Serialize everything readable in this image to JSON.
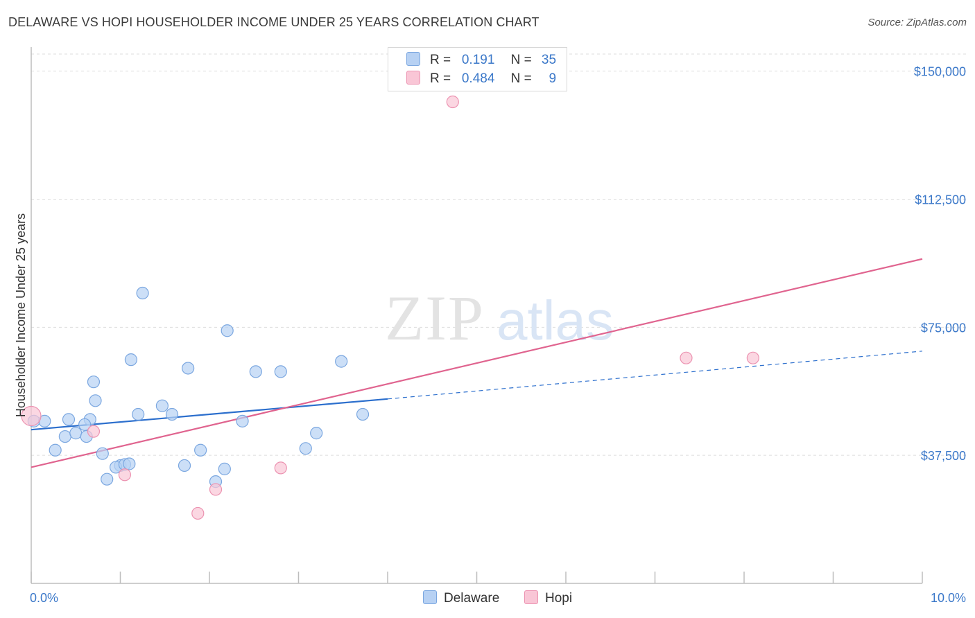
{
  "title": "DELAWARE VS HOPI HOUSEHOLDER INCOME UNDER 25 YEARS CORRELATION CHART",
  "source": "Source: ZipAtlas.com",
  "watermark": {
    "zip": "ZIP",
    "atlas": "atlas"
  },
  "legend": {
    "rows": [
      {
        "r_label": "R =",
        "r_value": "0.191",
        "n_label": "N =",
        "n_value": "35",
        "color": "#b7d1f3",
        "border": "#7ba7e0"
      },
      {
        "r_label": "R =",
        "r_value": "0.484",
        "n_label": "N =",
        "n_value": "9",
        "color": "#f9c6d6",
        "border": "#ec93b1"
      }
    ]
  },
  "bottom_legend": [
    {
      "label": "Delaware",
      "color": "#b7d1f3",
      "border": "#7ba7e0"
    },
    {
      "label": "Hopi",
      "color": "#f9c6d6",
      "border": "#ec93b1"
    }
  ],
  "chart_data": {
    "type": "scatter",
    "title": "DELAWARE VS HOPI HOUSEHOLDER INCOME UNDER 25 YEARS CORRELATION CHART",
    "xlabel": "",
    "ylabel": "Householder Income Under 25 years",
    "xlim": [
      0,
      10
    ],
    "ylim": [
      0,
      155000
    ],
    "x_tick_labels": [
      "0.0%",
      "10.0%"
    ],
    "y_ticks": [
      37500,
      75000,
      112500,
      150000
    ],
    "y_tick_labels": [
      "$37,500",
      "$75,000",
      "$112,500",
      "$150,000"
    ],
    "grid": true,
    "series": [
      {
        "name": "Delaware",
        "color": "#b7d1f3",
        "stroke": "#7ba7e0",
        "line_color": "#2c6fcd",
        "points": [
          [
            0.03,
            47500
          ],
          [
            0.15,
            47500
          ],
          [
            0.42,
            48000
          ],
          [
            0.66,
            48000
          ],
          [
            0.27,
            39000
          ],
          [
            0.38,
            43000
          ],
          [
            0.5,
            44000
          ],
          [
            0.6,
            46500
          ],
          [
            0.72,
            53500
          ],
          [
            0.62,
            43000
          ],
          [
            0.7,
            59000
          ],
          [
            0.8,
            38000
          ],
          [
            0.85,
            30500
          ],
          [
            1.0,
            34500
          ],
          [
            0.95,
            34000
          ],
          [
            1.05,
            34800
          ],
          [
            1.1,
            35000
          ],
          [
            1.12,
            65500
          ],
          [
            1.2,
            49500
          ],
          [
            1.25,
            85000
          ],
          [
            1.47,
            52000
          ],
          [
            1.58,
            49500
          ],
          [
            1.72,
            34500
          ],
          [
            1.76,
            63000
          ],
          [
            1.9,
            39000
          ],
          [
            2.07,
            29800
          ],
          [
            2.17,
            33500
          ],
          [
            2.2,
            74000
          ],
          [
            2.37,
            47500
          ],
          [
            2.52,
            62000
          ],
          [
            2.8,
            62000
          ],
          [
            3.08,
            39500
          ],
          [
            3.2,
            44000
          ],
          [
            3.48,
            65000
          ],
          [
            3.72,
            49500
          ]
        ],
        "trend": {
          "x0": 0,
          "y0": 45000,
          "x1": 4.0,
          "y1": 54000,
          "dash_x1": 10.0,
          "dash_y1": 68000
        }
      },
      {
        "name": "Hopi",
        "color": "#f9c6d6",
        "stroke": "#ec93b1",
        "line_color": "#e0648f",
        "points": [
          [
            0.0,
            49000
          ],
          [
            0.7,
            44500
          ],
          [
            1.05,
            31800
          ],
          [
            1.87,
            20500
          ],
          [
            2.07,
            27500
          ],
          [
            2.8,
            33800
          ],
          [
            4.73,
            141000
          ],
          [
            7.35,
            66000
          ],
          [
            8.1,
            66000
          ]
        ],
        "trend": {
          "x0": 0,
          "y0": 34000,
          "x1": 10.0,
          "y1": 95000
        }
      }
    ]
  }
}
